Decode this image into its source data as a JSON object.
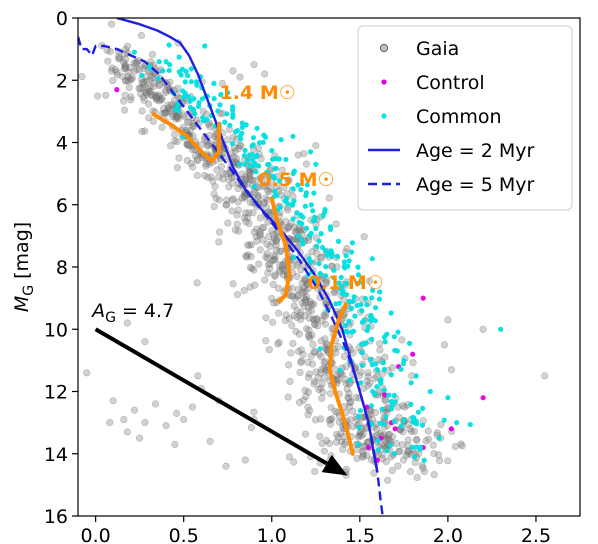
{
  "chart_data": {
    "type": "scatter",
    "xlabel": "",
    "ylabel": "M_G [mag]",
    "ylabel_main": "M",
    "ylabel_sub": "G",
    "ylabel_unit": " [mag]",
    "xlim": [
      -0.1,
      2.75
    ],
    "ylim": [
      16,
      0
    ],
    "y_inverted": true,
    "x_ticks": [
      {
        "value": 0.0,
        "label": "0.0"
      },
      {
        "value": 0.5,
        "label": "0.5"
      },
      {
        "value": 1.0,
        "label": "1.0"
      },
      {
        "value": 1.5,
        "label": "1.5"
      },
      {
        "value": 2.0,
        "label": "2.0"
      },
      {
        "value": 2.5,
        "label": "2.5"
      }
    ],
    "y_ticks": [
      {
        "value": 0,
        "label": "0"
      },
      {
        "value": 2,
        "label": "2"
      },
      {
        "value": 4,
        "label": "4"
      },
      {
        "value": 6,
        "label": "6"
      },
      {
        "value": 8,
        "label": "8"
      },
      {
        "value": 10,
        "label": "10"
      },
      {
        "value": 12,
        "label": "12"
      },
      {
        "value": 14,
        "label": "14"
      },
      {
        "value": 16,
        "label": "16"
      }
    ],
    "grid": false,
    "legend_position": "top-right",
    "legend": [
      {
        "label": "Gaia",
        "kind": "marker",
        "color": "#808080"
      },
      {
        "label": "Control",
        "kind": "marker",
        "color": "#e000e0"
      },
      {
        "label": "Common",
        "kind": "marker",
        "color": "#00e5e5"
      },
      {
        "label": "Age = 2 Myr",
        "kind": "solid-line",
        "color": "#1f1fe0"
      },
      {
        "label": "Age = 5 Myr",
        "kind": "dashed-line",
        "color": "#1f1fe0"
      }
    ],
    "colors": {
      "gaia": "#7f7f7f",
      "control": "#e000e0",
      "common": "#00dede",
      "isochrone": "#1f1fe0",
      "mass_track": "#ff8c00",
      "arrow": "#000000"
    },
    "isochrones": [
      {
        "name": "Age = 2 Myr",
        "style": "solid",
        "points": [
          [
            0.12,
            0.0
          ],
          [
            0.25,
            0.2
          ],
          [
            0.35,
            0.4
          ],
          [
            0.42,
            0.6
          ],
          [
            0.48,
            0.8
          ],
          [
            0.53,
            1.2
          ],
          [
            0.58,
            1.8
          ],
          [
            0.62,
            2.4
          ],
          [
            0.66,
            3.0
          ],
          [
            0.7,
            3.6
          ],
          [
            0.74,
            4.2
          ],
          [
            0.78,
            4.8
          ],
          [
            0.85,
            5.5
          ],
          [
            0.95,
            6.2
          ],
          [
            1.05,
            6.8
          ],
          [
            1.15,
            7.5
          ],
          [
            1.25,
            8.3
          ],
          [
            1.33,
            9.1
          ],
          [
            1.4,
            10.0
          ],
          [
            1.45,
            11.0
          ],
          [
            1.5,
            12.0
          ],
          [
            1.55,
            13.0
          ],
          [
            1.58,
            14.0
          ],
          [
            1.6,
            14.6
          ]
        ]
      },
      {
        "name": "Age = 5 Myr",
        "style": "dashed",
        "points": [
          [
            -0.1,
            0.6
          ],
          [
            -0.08,
            1.0
          ],
          [
            -0.05,
            1.0
          ],
          [
            -0.02,
            1.2
          ],
          [
            0.0,
            0.9
          ],
          [
            0.05,
            0.9
          ],
          [
            0.12,
            1.0
          ],
          [
            0.2,
            1.2
          ],
          [
            0.28,
            1.4
          ],
          [
            0.36,
            1.8
          ],
          [
            0.44,
            2.4
          ],
          [
            0.52,
            3.0
          ],
          [
            0.6,
            3.6
          ],
          [
            0.68,
            4.2
          ],
          [
            0.76,
            4.8
          ],
          [
            0.86,
            5.6
          ],
          [
            0.96,
            6.3
          ],
          [
            1.06,
            7.0
          ],
          [
            1.16,
            7.8
          ],
          [
            1.26,
            8.7
          ],
          [
            1.34,
            9.6
          ],
          [
            1.42,
            10.6
          ],
          [
            1.48,
            11.6
          ],
          [
            1.53,
            12.6
          ],
          [
            1.57,
            13.6
          ],
          [
            1.6,
            14.6
          ],
          [
            1.62,
            15.6
          ],
          [
            1.63,
            16.0
          ]
        ]
      }
    ],
    "mass_tracks": [
      {
        "label": "1.4 M☉",
        "label_pos": [
          0.92,
          2.6
        ],
        "points": [
          [
            0.33,
            3.1
          ],
          [
            0.42,
            3.4
          ],
          [
            0.52,
            3.8
          ],
          [
            0.6,
            4.3
          ],
          [
            0.66,
            4.6
          ],
          [
            0.7,
            4.3
          ],
          [
            0.7,
            3.4
          ]
        ]
      },
      {
        "label": "0.5 M☉",
        "label_pos": [
          1.14,
          5.4
        ],
        "points": [
          [
            1.0,
            5.8
          ],
          [
            1.03,
            6.5
          ],
          [
            1.08,
            7.3
          ],
          [
            1.1,
            8.2
          ],
          [
            1.08,
            8.9
          ],
          [
            1.04,
            9.1
          ]
        ]
      },
      {
        "label": "0.1 M☉",
        "label_pos": [
          1.42,
          8.7
        ],
        "points": [
          [
            1.42,
            9.2
          ],
          [
            1.38,
            9.7
          ],
          [
            1.34,
            10.5
          ],
          [
            1.33,
            11.3
          ],
          [
            1.36,
            12.0
          ],
          [
            1.4,
            12.7
          ],
          [
            1.43,
            13.3
          ],
          [
            1.46,
            14.0
          ]
        ]
      }
    ],
    "extinction_arrow": {
      "label": "A_G = 4.7",
      "label_main": "A",
      "label_sub": "G",
      "label_rest": " = 4.7",
      "label_pos": [
        -0.02,
        9.6
      ],
      "start": [
        0.0,
        10.0
      ],
      "end": [
        1.43,
        14.7
      ]
    },
    "series": [
      {
        "name": "Gaia",
        "color": "#7f7f7f",
        "generated": true,
        "band": [
          [
            0.15,
            1.3
          ],
          [
            0.5,
            3.2
          ],
          [
            0.9,
            5.6
          ],
          [
            1.1,
            7.5
          ],
          [
            1.3,
            10.0
          ],
          [
            1.5,
            12.8
          ],
          [
            1.65,
            14.3
          ]
        ],
        "band_width": [
          0.18,
          0.45
        ],
        "count": 1100,
        "outliers": [
          [
            0.1,
            12.3
          ],
          [
            0.16,
            12.9
          ],
          [
            0.22,
            12.6
          ],
          [
            0.28,
            13.0
          ],
          [
            0.34,
            12.4
          ],
          [
            0.4,
            13.1
          ],
          [
            0.46,
            12.7
          ],
          [
            0.5,
            12.9
          ],
          [
            0.55,
            12.5
          ],
          [
            0.18,
            13.3
          ],
          [
            0.08,
            13.0
          ],
          [
            -0.05,
            11.4
          ],
          [
            0.25,
            13.5
          ],
          [
            0.45,
            13.7
          ],
          [
            0.65,
            13.6
          ],
          [
            0.74,
            14.4
          ],
          [
            0.85,
            14.2
          ],
          [
            0.9,
            12.9
          ],
          [
            0.6,
            11.9
          ],
          [
            0.7,
            12.3
          ],
          [
            0.33,
            2.2
          ],
          [
            0.72,
            2.1
          ],
          [
            0.78,
            1.7
          ],
          [
            0.82,
            1.9
          ],
          [
            0.9,
            1.5
          ],
          [
            0.96,
            1.8
          ],
          [
            1.15,
            4.4
          ],
          [
            1.25,
            4.1
          ],
          [
            2.0,
            9.7
          ],
          [
            2.2,
            10.0
          ],
          [
            2.55,
            11.5
          ],
          [
            2.02,
            11.3
          ],
          [
            1.98,
            10.5
          ],
          [
            0.47,
            0.8
          ],
          [
            0.09,
            0.2
          ],
          [
            0.18,
            9.8
          ],
          [
            0.28,
            10.4
          ],
          [
            0.58,
            11.5
          ],
          [
            1.1,
            14.1
          ]
        ]
      },
      {
        "name": "Control",
        "color": "#e000e0",
        "points": [
          [
            0.12,
            2.3
          ],
          [
            1.86,
            9.0
          ],
          [
            1.8,
            10.8
          ],
          [
            1.72,
            11.2
          ],
          [
            1.64,
            12.1
          ],
          [
            1.68,
            13.0
          ],
          [
            1.54,
            12.5
          ],
          [
            1.62,
            13.5
          ],
          [
            1.7,
            13.2
          ],
          [
            2.02,
            13.2
          ],
          [
            2.2,
            12.2
          ],
          [
            1.55,
            13.8
          ],
          [
            1.6,
            14.2
          ],
          [
            1.86,
            13.8
          ]
        ]
      },
      {
        "name": "Common",
        "color": "#00dede",
        "generated": true,
        "band": [
          [
            0.18,
            1.2
          ],
          [
            0.6,
            3.2
          ],
          [
            0.95,
            5.2
          ],
          [
            1.2,
            7.3
          ],
          [
            1.4,
            9.4
          ],
          [
            1.55,
            11.8
          ],
          [
            1.7,
            14.2
          ]
        ],
        "band_width": [
          0.12,
          0.25
        ],
        "offset": 0.1,
        "count": 320,
        "outliers": [
          [
            0.22,
            1.1
          ],
          [
            0.4,
            1.4
          ],
          [
            0.75,
            2.4
          ],
          [
            0.78,
            3.1
          ],
          [
            1.12,
            3.8
          ],
          [
            1.22,
            4.3
          ],
          [
            1.75,
            11.0
          ],
          [
            1.82,
            11.5
          ],
          [
            1.9,
            12.0
          ],
          [
            2.3,
            10.0
          ],
          [
            2.0,
            12.2
          ],
          [
            1.95,
            13.5
          ],
          [
            2.05,
            13.0
          ],
          [
            1.25,
            4.7
          ],
          [
            0.62,
            0.9
          ]
        ]
      }
    ]
  }
}
